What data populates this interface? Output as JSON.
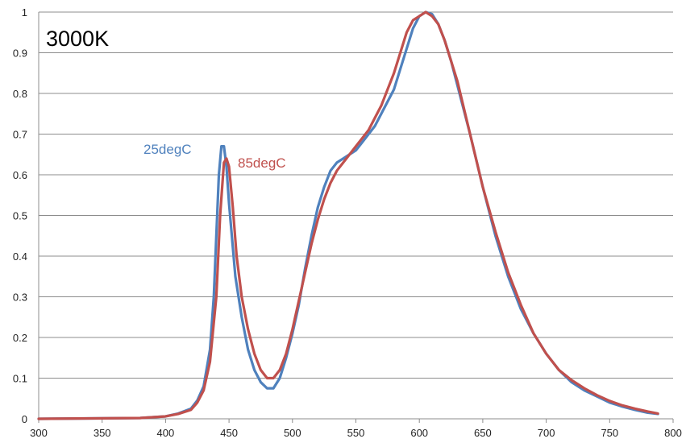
{
  "chart_data": {
    "type": "line",
    "title": "3000K",
    "xlabel": "",
    "ylabel": "",
    "xlim": [
      300,
      800
    ],
    "ylim": [
      0,
      1
    ],
    "x_ticks": [
      "300",
      "350",
      "400",
      "450",
      "500",
      "550",
      "600",
      "650",
      "700",
      "750",
      "800"
    ],
    "y_ticks": [
      "0",
      "0.1",
      "0.2",
      "0.3",
      "0.4",
      "0.5",
      "0.6",
      "0.7",
      "0.8",
      "0.9",
      "1"
    ],
    "grid": true,
    "legend": "none",
    "series": [
      {
        "name": "25degC",
        "color": "#4f81bd",
        "x": [
          300,
          380,
          400,
          410,
          420,
          425,
          430,
          435,
          438,
          440,
          442,
          444,
          446,
          448,
          450,
          455,
          460,
          465,
          470,
          475,
          480,
          485,
          490,
          495,
          500,
          505,
          510,
          515,
          520,
          525,
          530,
          535,
          540,
          545,
          550,
          555,
          560,
          565,
          570,
          575,
          580,
          585,
          590,
          595,
          600,
          605,
          610,
          615,
          620,
          625,
          630,
          640,
          650,
          660,
          670,
          680,
          690,
          700,
          710,
          720,
          730,
          740,
          750,
          760,
          770,
          780,
          788
        ],
        "y": [
          0,
          0.002,
          0.006,
          0.013,
          0.025,
          0.045,
          0.08,
          0.17,
          0.3,
          0.45,
          0.6,
          0.67,
          0.67,
          0.62,
          0.53,
          0.35,
          0.25,
          0.17,
          0.12,
          0.09,
          0.075,
          0.075,
          0.1,
          0.15,
          0.21,
          0.28,
          0.37,
          0.45,
          0.52,
          0.57,
          0.61,
          0.63,
          0.64,
          0.65,
          0.66,
          0.68,
          0.7,
          0.72,
          0.75,
          0.78,
          0.81,
          0.86,
          0.91,
          0.96,
          0.99,
          1.0,
          0.995,
          0.97,
          0.93,
          0.88,
          0.82,
          0.7,
          0.57,
          0.45,
          0.35,
          0.27,
          0.21,
          0.16,
          0.12,
          0.09,
          0.07,
          0.055,
          0.04,
          0.03,
          0.022,
          0.015,
          0.012
        ]
      },
      {
        "name": "85degC",
        "color": "#c0504d",
        "x": [
          300,
          380,
          400,
          410,
          420,
          425,
          430,
          435,
          440,
          443,
          446,
          448,
          450,
          453,
          456,
          460,
          465,
          470,
          475,
          480,
          485,
          490,
          495,
          500,
          505,
          510,
          515,
          520,
          525,
          530,
          535,
          540,
          545,
          550,
          555,
          560,
          565,
          570,
          575,
          580,
          585,
          590,
          595,
          600,
          605,
          610,
          615,
          620,
          625,
          630,
          640,
          650,
          660,
          670,
          680,
          690,
          700,
          710,
          720,
          730,
          740,
          750,
          760,
          770,
          780,
          788
        ],
        "y": [
          0,
          0.002,
          0.006,
          0.012,
          0.022,
          0.04,
          0.07,
          0.14,
          0.3,
          0.5,
          0.63,
          0.64,
          0.62,
          0.52,
          0.4,
          0.3,
          0.22,
          0.16,
          0.12,
          0.1,
          0.1,
          0.12,
          0.16,
          0.22,
          0.29,
          0.36,
          0.43,
          0.49,
          0.54,
          0.58,
          0.61,
          0.63,
          0.65,
          0.67,
          0.69,
          0.71,
          0.74,
          0.77,
          0.81,
          0.85,
          0.9,
          0.95,
          0.98,
          0.99,
          1.0,
          0.99,
          0.97,
          0.93,
          0.88,
          0.83,
          0.7,
          0.57,
          0.46,
          0.36,
          0.28,
          0.21,
          0.16,
          0.12,
          0.095,
          0.075,
          0.058,
          0.044,
          0.033,
          0.025,
          0.018,
          0.013
        ]
      }
    ]
  }
}
